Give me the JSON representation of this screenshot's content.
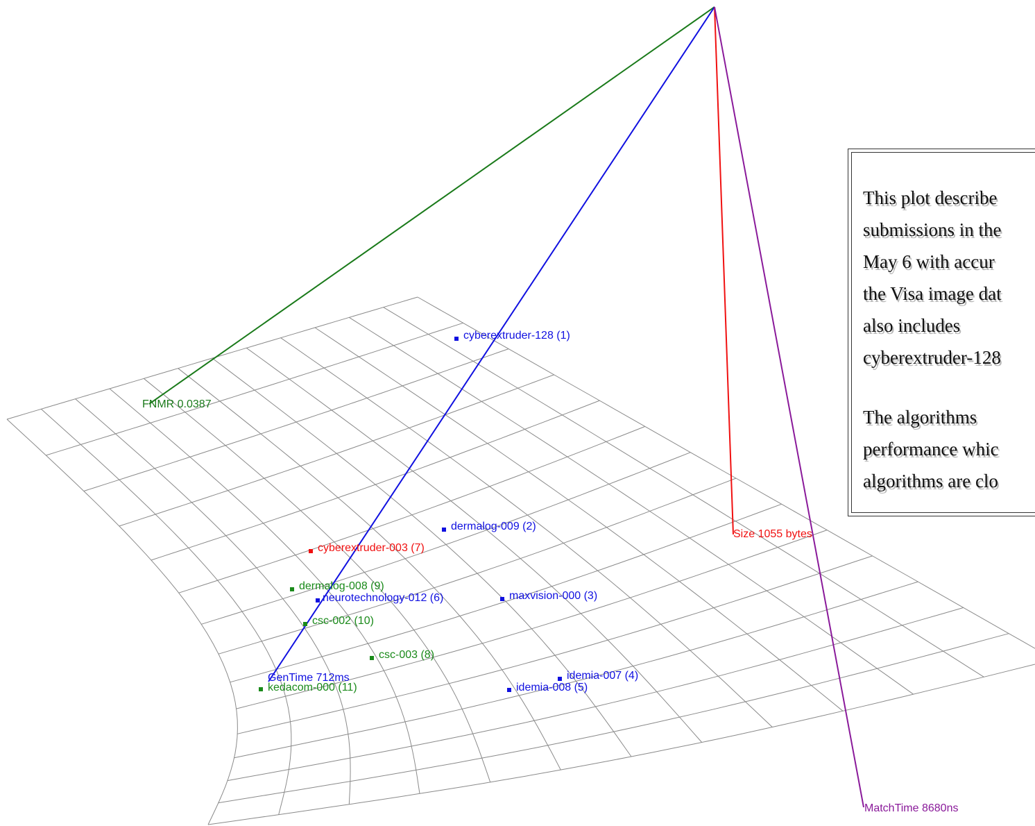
{
  "axes": {
    "fnmr": {
      "label": "FNMR 0.0387",
      "color": "#1a7a1a"
    },
    "gentime": {
      "label": "GenTime 712ms",
      "color": "#1010e0"
    },
    "size": {
      "label": "Size 1055 bytes",
      "color": "#f01010"
    },
    "matchtime": {
      "label": "MatchTime 8680ns",
      "color": "#8a1a9a"
    }
  },
  "colors": {
    "mesh": "#8a8a8a",
    "blue": "#1010e0",
    "red": "#f01010",
    "green": "#1a8a1a"
  },
  "algorithms": [
    {
      "label": "cyberextruder-128 (1)",
      "color": "blue"
    },
    {
      "label": "dermalog-009 (2)",
      "color": "blue"
    },
    {
      "label": "cyberextruder-003 (7)",
      "color": "red"
    },
    {
      "label": "dermalog-008 (9)",
      "color": "green"
    },
    {
      "label": "neurotechnology-012 (6)",
      "color": "blue"
    },
    {
      "label": "maxvision-000 (3)",
      "color": "blue"
    },
    {
      "label": "csc-002 (10)",
      "color": "green"
    },
    {
      "label": "csc-003 (8)",
      "color": "green"
    },
    {
      "label": "idemia-007 (4)",
      "color": "blue"
    },
    {
      "label": "idemia-008 (5)",
      "color": "blue"
    },
    {
      "label": "kedacom-000 (11)",
      "color": "green"
    }
  ],
  "description": {
    "para1": [
      "This plot describe",
      "submissions in the",
      "May 6 with accur",
      "the Visa image dat",
      "also    includes",
      "cyberextruder-128"
    ],
    "para2": [
      "The    algorithms",
      "performance whic",
      "algorithms are clo"
    ]
  }
}
